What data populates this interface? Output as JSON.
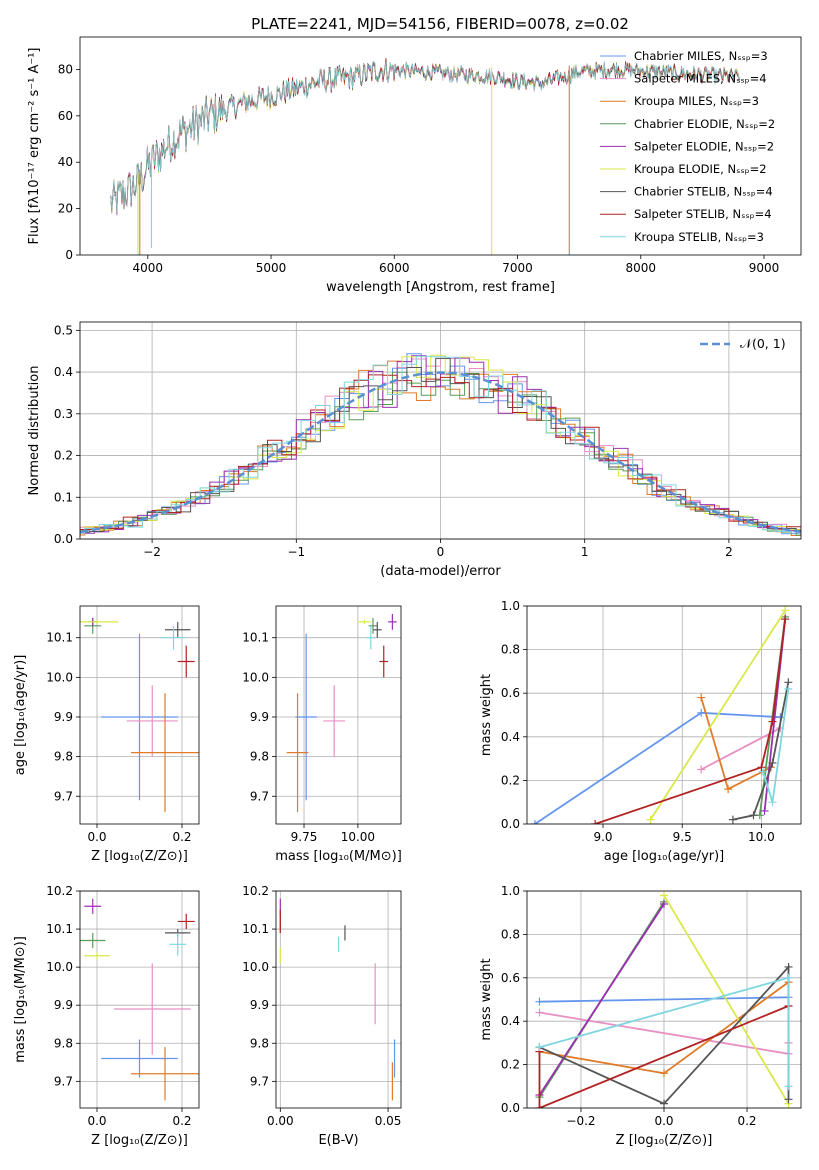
{
  "colors": {
    "CM": "#6495ed",
    "SM": "#e88fc4",
    "KM": "#e07b28",
    "CE": "#5a9e5a",
    "SE": "#9b30b0",
    "KE": "#d9e84a",
    "CS": "#555555",
    "SS": "#b22222",
    "KS": "#7fd6e0",
    "grid": "#b0b0b0",
    "normal_line": "#5b8fd4"
  },
  "model_order": [
    "CM",
    "SM",
    "KM",
    "CE",
    "SE",
    "KE",
    "CS",
    "SS",
    "KS"
  ],
  "chart_data": [
    {
      "id": "spectrum",
      "type": "line",
      "title": "PLATE=2241, MJD=54156, FIBERID=0078, z=0.02",
      "xlabel": "wavelength [Angstrom, rest frame]",
      "ylabel": "Flux [fλ10⁻¹⁷ erg cm⁻² s⁻¹ A⁻¹]",
      "xlim": [
        3450,
        9300
      ],
      "ylim": [
        0,
        94
      ],
      "xticks": [
        4000,
        5000,
        6000,
        7000,
        8000,
        9000
      ],
      "yticks": [
        0,
        20,
        40,
        60,
        80
      ],
      "legend_position": "top-right",
      "legend": [
        {
          "key": "CM",
          "label": "Chabrier MILES, Nₛₛₚ=3"
        },
        {
          "key": "SM",
          "label": "Salpeter MILES, Nₛₛₚ=4"
        },
        {
          "key": "KM",
          "label": "Kroupa MILES, Nₛₛₚ=3"
        },
        {
          "key": "CE",
          "label": "Chabrier ELODIE, Nₛₛₚ=2"
        },
        {
          "key": "SE",
          "label": "Salpeter ELODIE, Nₛₛₚ=2"
        },
        {
          "key": "KE",
          "label": "Kroupa ELODIE, Nₛₛₚ=2"
        },
        {
          "key": "CS",
          "label": "Chabrier STELIB, Nₛₛₚ=4"
        },
        {
          "key": "SS",
          "label": "Salpeter STELIB, Nₛₛₚ=4"
        },
        {
          "key": "KS",
          "label": "Kroupa STELIB, Nₛₛₚ=3"
        }
      ],
      "continuum": {
        "x": [
          3700,
          3900,
          4000,
          4200,
          4500,
          4800,
          5100,
          5400,
          5700,
          5900,
          6200,
          6500,
          6800,
          7000,
          7200,
          7500,
          7800,
          8100,
          8400,
          8800
        ],
        "y": [
          22,
          30,
          38,
          50,
          60,
          66,
          70,
          75,
          77,
          80,
          79,
          78,
          77,
          75,
          74,
          79,
          80,
          79,
          78,
          77
        ]
      },
      "dips": [
        {
          "key": "KE",
          "x": 3920,
          "y": 0
        },
        {
          "key": "KM",
          "x": 3935,
          "y": 0
        },
        {
          "key": "KS",
          "x": 4030,
          "y": 3
        },
        {
          "key": "KE",
          "x": 6790,
          "y": 0
        },
        {
          "key": "KM",
          "x": 7420,
          "y": 0
        }
      ]
    },
    {
      "id": "residuals",
      "type": "histogram",
      "xlabel": "(data-model)/error",
      "ylabel": "Normed distribution",
      "xlim": [
        -2.5,
        2.5
      ],
      "ylim": [
        0,
        0.52
      ],
      "xticks": [
        -2,
        -1,
        0,
        1,
        2
      ],
      "yticks": [
        0.0,
        0.1,
        0.2,
        0.3,
        0.4,
        0.5
      ],
      "bin_width": 0.1,
      "legend": [
        {
          "label": "𝒩(0, 1)",
          "style": "dashed"
        }
      ],
      "legend_position": "top-right"
    },
    {
      "id": "age-vs-Z",
      "type": "scatter",
      "xlabel": "Z [log₁₀(Z/Z⊙)]",
      "ylabel": "age  [log₁₀(age/yr)]",
      "xlim": [
        -0.04,
        0.24
      ],
      "ylim": [
        9.63,
        10.18
      ],
      "xticks": [
        0.0,
        0.2
      ],
      "yticks": [
        9.7,
        9.8,
        9.9,
        10.0,
        10.1
      ],
      "points": [
        {
          "key": "CM",
          "x": 0.1,
          "y": 9.9,
          "xerr": 0.09,
          "yerr": 0.21
        },
        {
          "key": "SM",
          "x": 0.13,
          "y": 9.89,
          "xerr": 0.06,
          "yerr": 0.09
        },
        {
          "key": "KM",
          "x": 0.16,
          "y": 9.81,
          "xerr": 0.08,
          "yerr": 0.15
        },
        {
          "key": "CE",
          "x": -0.01,
          "y": 10.13,
          "xerr": 0.02,
          "yerr": 0.02
        },
        {
          "key": "SE",
          "x": -0.01,
          "y": 10.14,
          "xerr": 0.01,
          "yerr": 0.01
        },
        {
          "key": "KE",
          "x": 0.0,
          "y": 10.14,
          "xerr": 0.05,
          "yerr": 0.005
        },
        {
          "key": "CS",
          "x": 0.19,
          "y": 10.12,
          "xerr": 0.03,
          "yerr": 0.02
        },
        {
          "key": "SS",
          "x": 0.21,
          "y": 10.04,
          "xerr": 0.02,
          "yerr": 0.04
        },
        {
          "key": "KS",
          "x": 0.18,
          "y": 10.1,
          "xerr": 0.03,
          "yerr": 0.03
        }
      ]
    },
    {
      "id": "age-vs-mass",
      "type": "scatter",
      "xlabel": "mass [log₁₀(M/M⊙)]",
      "ylabel": "",
      "xlim": [
        9.62,
        10.2
      ],
      "ylim": [
        9.63,
        10.18
      ],
      "xticks": [
        9.75,
        10.0
      ],
      "yticks": [
        9.7,
        9.8,
        9.9,
        10.0,
        10.1
      ],
      "points": [
        {
          "key": "CM",
          "x": 9.76,
          "y": 9.9,
          "xerr": 0.05,
          "yerr": 0.21
        },
        {
          "key": "SM",
          "x": 9.89,
          "y": 9.89,
          "xerr": 0.05,
          "yerr": 0.09
        },
        {
          "key": "KM",
          "x": 9.72,
          "y": 9.81,
          "xerr": 0.05,
          "yerr": 0.15
        },
        {
          "key": "CE",
          "x": 10.07,
          "y": 10.13,
          "xerr": 0.02,
          "yerr": 0.02
        },
        {
          "key": "SE",
          "x": 10.16,
          "y": 10.14,
          "xerr": 0.02,
          "yerr": 0.02
        },
        {
          "key": "KE",
          "x": 10.03,
          "y": 10.14,
          "xerr": 0.03,
          "yerr": 0.005
        },
        {
          "key": "CS",
          "x": 10.09,
          "y": 10.12,
          "xerr": 0.02,
          "yerr": 0.02
        },
        {
          "key": "SS",
          "x": 10.12,
          "y": 10.04,
          "xerr": 0.02,
          "yerr": 0.04
        },
        {
          "key": "KS",
          "x": 10.06,
          "y": 10.1,
          "xerr": 0.02,
          "yerr": 0.03
        }
      ]
    },
    {
      "id": "weight-vs-age",
      "type": "line",
      "xlabel": "age  [log₁₀(age/yr)]",
      "ylabel": "mass weight",
      "xlim": [
        8.52,
        10.25
      ],
      "ylim": [
        0,
        1.0
      ],
      "xticks": [
        9.0,
        9.5,
        10.0
      ],
      "yticks": [
        0.0,
        0.2,
        0.4,
        0.6,
        0.8,
        1.0
      ],
      "series": [
        {
          "key": "CM",
          "x": [
            8.57,
            9.62,
            10.12
          ],
          "y": [
            0.0,
            0.51,
            0.49
          ]
        },
        {
          "key": "SM",
          "x": [
            9.62,
            10.12
          ],
          "y": [
            0.25,
            0.44
          ]
        },
        {
          "key": "KM",
          "x": [
            9.62,
            9.79,
            10.06
          ],
          "y": [
            0.58,
            0.16,
            0.26
          ]
        },
        {
          "key": "CE",
          "x": [
            9.99,
            10.15
          ],
          "y": [
            0.04,
            0.95
          ]
        },
        {
          "key": "SE",
          "x": [
            10.02,
            10.15
          ],
          "y": [
            0.06,
            0.94
          ]
        },
        {
          "key": "KE",
          "x": [
            9.3,
            10.15
          ],
          "y": [
            0.02,
            0.98
          ]
        },
        {
          "key": "CS",
          "x": [
            9.82,
            9.95,
            10.07,
            10.17
          ],
          "y": [
            0.02,
            0.04,
            0.28,
            0.65
          ]
        },
        {
          "key": "SS",
          "x": [
            8.95,
            10.0,
            10.07,
            10.15
          ],
          "y": [
            0.0,
            0.26,
            0.47,
            0.94
          ]
        },
        {
          "key": "KS",
          "x": [
            10.01,
            10.07,
            10.17
          ],
          "y": [
            0.24,
            0.1,
            0.62
          ]
        }
      ]
    },
    {
      "id": "mass-vs-Z",
      "type": "scatter",
      "xlabel": "Z [log₁₀(Z/Z⊙)]",
      "ylabel": "mass [log₁₀(M/M⊙)]",
      "xlim": [
        -0.04,
        0.24
      ],
      "ylim": [
        9.63,
        10.2
      ],
      "xticks": [
        0.0,
        0.2
      ],
      "yticks": [
        9.7,
        9.8,
        9.9,
        10.0,
        10.1,
        10.2
      ],
      "points": [
        {
          "key": "CM",
          "x": 0.1,
          "y": 9.76,
          "xerr": 0.09,
          "yerr": 0.05
        },
        {
          "key": "SM",
          "x": 0.13,
          "y": 9.89,
          "xerr": 0.09,
          "yerr": 0.12
        },
        {
          "key": "KM",
          "x": 0.16,
          "y": 9.72,
          "xerr": 0.08,
          "yerr": 0.07
        },
        {
          "key": "CE",
          "x": -0.01,
          "y": 10.07,
          "xerr": 0.03,
          "yerr": 0.02
        },
        {
          "key": "SE",
          "x": -0.01,
          "y": 10.16,
          "xerr": 0.02,
          "yerr": 0.02
        },
        {
          "key": "KE",
          "x": 0.0,
          "y": 10.03,
          "xerr": 0.03,
          "yerr": 0.01
        },
        {
          "key": "CS",
          "x": 0.19,
          "y": 10.09,
          "xerr": 0.03,
          "yerr": 0.01
        },
        {
          "key": "SS",
          "x": 0.21,
          "y": 10.12,
          "xerr": 0.02,
          "yerr": 0.02
        },
        {
          "key": "KS",
          "x": 0.19,
          "y": 10.06,
          "xerr": 0.02,
          "yerr": 0.03
        }
      ]
    },
    {
      "id": "mass-vs-ebv",
      "type": "scatter",
      "xlabel": "E(B-V)",
      "ylabel": "",
      "xlim": [
        -0.002,
        0.056
      ],
      "ylim": [
        9.63,
        10.2
      ],
      "xticks": [
        0.0,
        0.05
      ],
      "yticks": [
        9.7,
        9.8,
        9.9,
        10.0,
        10.1,
        10.2
      ],
      "points": [
        {
          "key": "CM",
          "x": 0.053,
          "y": 9.76,
          "xerr": 0,
          "yerr": 0.05
        },
        {
          "key": "SM",
          "x": 0.044,
          "y": 9.93,
          "xerr": 0,
          "yerr": 0.08
        },
        {
          "key": "KM",
          "x": 0.052,
          "y": 9.7,
          "xerr": 0,
          "yerr": 0.05
        },
        {
          "key": "CE",
          "x": 0.0,
          "y": 10.12,
          "xerr": 0,
          "yerr": 0.03
        },
        {
          "key": "SE",
          "x": 0.0,
          "y": 10.16,
          "xerr": 0,
          "yerr": 0.02
        },
        {
          "key": "KE",
          "x": 0.0,
          "y": 10.03,
          "xerr": 0,
          "yerr": 0.02
        },
        {
          "key": "CS",
          "x": 0.03,
          "y": 10.09,
          "xerr": 0,
          "yerr": 0.02
        },
        {
          "key": "SS",
          "x": 0.0,
          "y": 10.12,
          "xerr": 0,
          "yerr": 0.03
        },
        {
          "key": "KS",
          "x": 0.027,
          "y": 10.06,
          "xerr": 0,
          "yerr": 0.02
        }
      ]
    },
    {
      "id": "weight-vs-Z",
      "type": "line",
      "xlabel": "Z [log₁₀(Z/Z⊙)]",
      "ylabel": "mass weight",
      "xlim": [
        -0.33,
        0.33
      ],
      "ylim": [
        0,
        1.0
      ],
      "xticks": [
        -0.2,
        0.0,
        0.2
      ],
      "yticks": [
        0.0,
        0.2,
        0.4,
        0.6,
        0.8,
        1.0
      ],
      "series": [
        {
          "key": "CM",
          "x": [
            -0.3,
            0.3
          ],
          "y": [
            0.49,
            0.51
          ]
        },
        {
          "key": "SM",
          "x": [
            -0.3,
            0.3,
            0.3
          ],
          "y": [
            0.44,
            0.25,
            0.3
          ]
        },
        {
          "key": "KM",
          "x": [
            -0.3,
            0.0,
            0.3
          ],
          "y": [
            0.26,
            0.16,
            0.58
          ]
        },
        {
          "key": "CE",
          "x": [
            -0.3,
            0.0
          ],
          "y": [
            0.05,
            0.95
          ]
        },
        {
          "key": "SE",
          "x": [
            -0.3,
            0.0
          ],
          "y": [
            0.06,
            0.94
          ]
        },
        {
          "key": "KE",
          "x": [
            0.0,
            0.3
          ],
          "y": [
            0.98,
            0.02
          ]
        },
        {
          "key": "CS",
          "x": [
            -0.3,
            0.0,
            0.3,
            0.3
          ],
          "y": [
            0.28,
            0.02,
            0.65,
            0.04
          ]
        },
        {
          "key": "SS",
          "x": [
            -0.3,
            -0.3,
            0.3
          ],
          "y": [
            0.26,
            0.0,
            0.47
          ]
        },
        {
          "key": "KS",
          "x": [
            -0.3,
            0.3,
            0.3
          ],
          "y": [
            0.28,
            0.6,
            0.1
          ]
        }
      ]
    }
  ]
}
